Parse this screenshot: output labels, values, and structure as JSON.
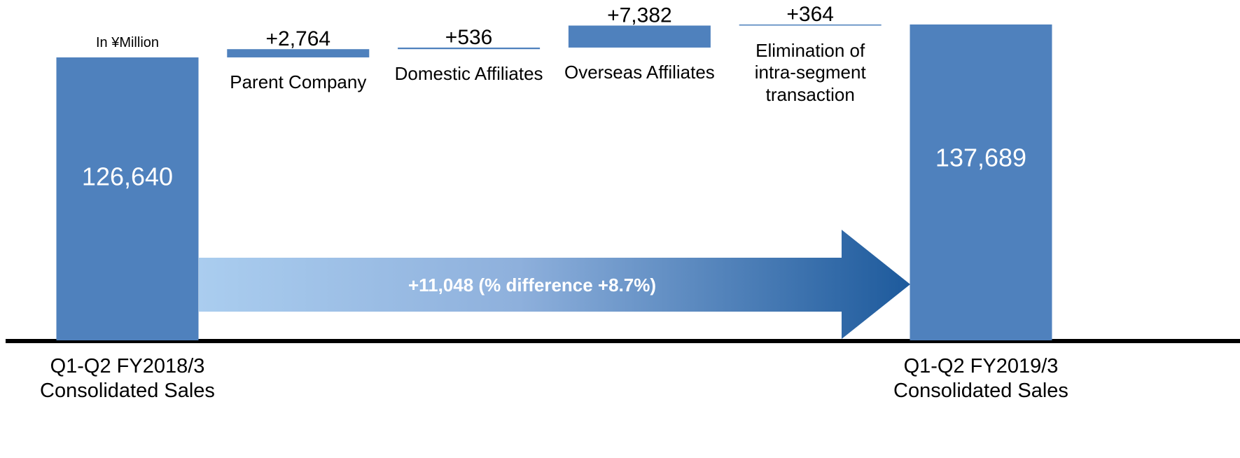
{
  "chart_data": {
    "type": "waterfall",
    "unit_label": "In ¥Million",
    "categories": [
      "Q1-Q2 FY2018/3 Consolidated Sales",
      "Parent Company",
      "Domestic Affiliates",
      "Overseas Affiliates",
      "Elimination of intra-segment transaction",
      "Q1-Q2 FY2019/3 Consolidated Sales"
    ],
    "values": [
      126640,
      2764,
      536,
      7382,
      364,
      137689
    ],
    "value_labels": [
      "126,640",
      "+2,764",
      "+536",
      "+7,382",
      "+364",
      "137,689"
    ],
    "kinds": [
      "total",
      "delta",
      "delta",
      "delta",
      "delta",
      "total"
    ],
    "color": "#4f81bd",
    "annotation": "+11,048 (% difference +8.7%)",
    "ylim": [
      31700,
      145900
    ]
  }
}
